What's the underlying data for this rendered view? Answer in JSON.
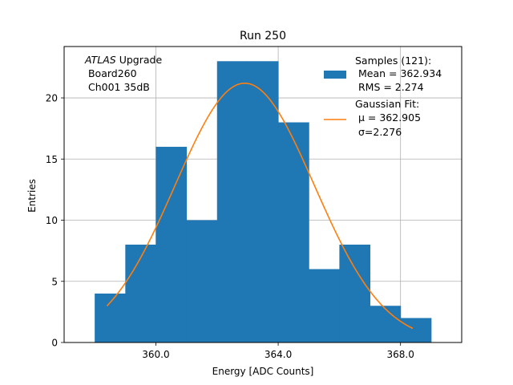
{
  "chart_data": {
    "type": "bar",
    "title": "Run 250",
    "xlabel": "Energy [ADC Counts]",
    "ylabel": "Entries",
    "xlim": [
      357.0,
      370.0
    ],
    "ylim": [
      0,
      24.2
    ],
    "xticks": [
      360.0,
      364.0,
      368.0
    ],
    "xtick_labels": [
      "360.0",
      "364.0",
      "368.0"
    ],
    "yticks": [
      0,
      5,
      10,
      15,
      20
    ],
    "ytick_labels": [
      "0",
      "5",
      "10",
      "15",
      "20"
    ],
    "grid": true,
    "histogram": {
      "name": "Samples (121):",
      "color": "#1f77b4",
      "bin_edges": [
        358,
        359,
        360,
        361,
        362,
        363,
        364,
        365,
        366,
        367,
        368,
        369
      ],
      "counts": [
        4,
        8,
        16,
        10,
        23,
        23,
        18,
        6,
        8,
        3,
        2
      ]
    },
    "fit": {
      "name": "Gaussian Fit:",
      "color": "#ff7f0e",
      "mu": 362.905,
      "sigma": 2.276,
      "amplitude": 21.2,
      "x_range": [
        358.4,
        368.4
      ]
    },
    "legend": {
      "position": "top-right",
      "entries": [
        {
          "lines": [
            "Samples (121):",
            " Mean = 362.934",
            " RMS = 2.274"
          ]
        },
        {
          "lines": [
            "Gaussian Fit:",
            " μ = 362.905",
            " σ=2.276"
          ]
        }
      ]
    },
    "annotation": {
      "position": "top-left",
      "atlas": "ATLAS",
      "upgrade": " Upgrade",
      "line2": " Board260",
      "line3": " Ch001 35dB"
    }
  }
}
